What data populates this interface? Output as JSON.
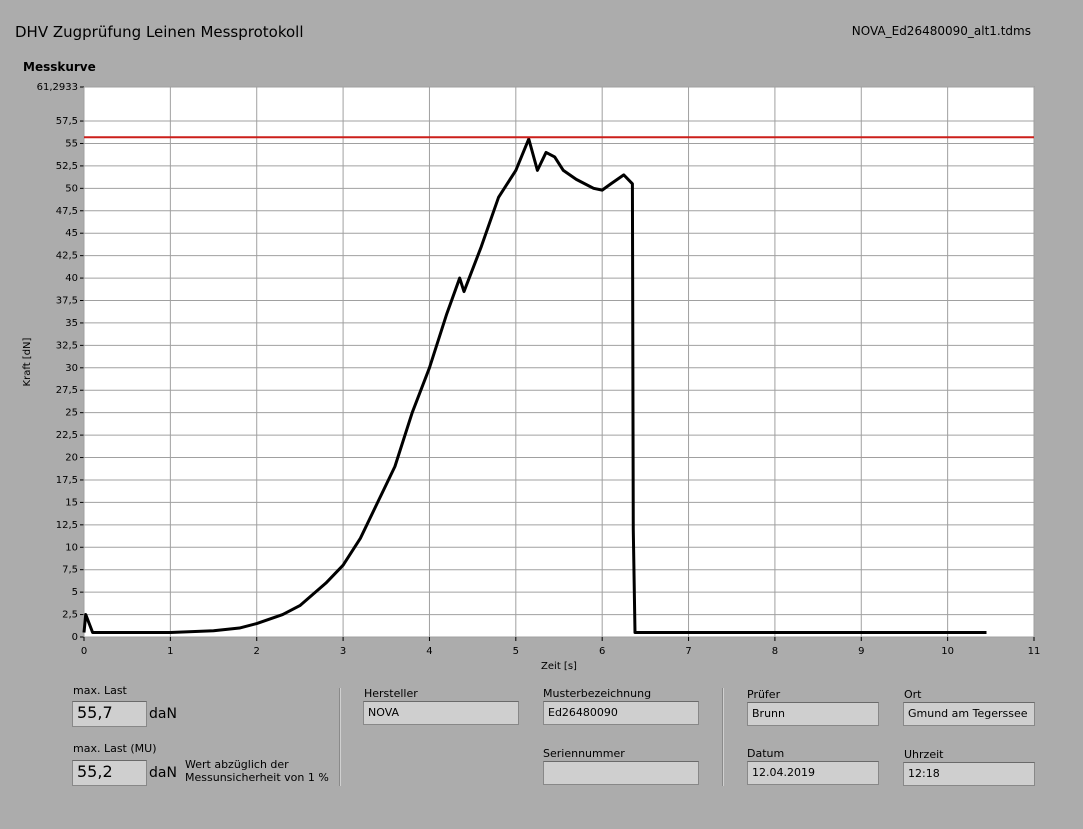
{
  "header": {
    "title": "DHV Zugprüfung Leinen Messprotokoll",
    "file": "NOVA_Ed26480090_alt1.tdms"
  },
  "chart_data": {
    "type": "line",
    "title": "Messkurve",
    "x_label": "Zeit [s]",
    "y_label": "Kraft [dN]",
    "x": [
      0,
      0.02,
      0.1,
      0.5,
      1.0,
      1.5,
      1.8,
      2.0,
      2.3,
      2.5,
      2.8,
      3.0,
      3.2,
      3.4,
      3.6,
      3.8,
      4.0,
      4.2,
      4.35,
      4.4,
      4.6,
      4.8,
      5.0,
      5.15,
      5.25,
      5.35,
      5.45,
      5.55,
      5.7,
      5.9,
      6.0,
      6.1,
      6.25,
      6.35,
      6.36,
      6.38,
      6.5,
      10.45
    ],
    "values": [
      0.5,
      2.5,
      0.5,
      0.5,
      0.5,
      0.7,
      1.0,
      1.5,
      2.5,
      3.5,
      6,
      8,
      11,
      15,
      19,
      25,
      30,
      36,
      40,
      38.5,
      43.5,
      49,
      52,
      55.5,
      52,
      54,
      53.5,
      52,
      51,
      50,
      49.8,
      50.5,
      51.5,
      50.5,
      12,
      0.5,
      0.5,
      0.5
    ],
    "color": "#000000",
    "limit_line": 55.7,
    "limit_color": "#cc1f1a",
    "xlim": [
      0,
      11
    ],
    "xticks": [
      0,
      1,
      2,
      3,
      4,
      5,
      6,
      7,
      8,
      9,
      10,
      11
    ],
    "ylim": [
      0,
      61.2933
    ],
    "yticks": [
      0,
      {
        "value": 2.5,
        "label": "2,5"
      },
      5,
      {
        "value": 7.5,
        "label": "7,5"
      },
      10,
      {
        "value": 12.5,
        "label": "12,5"
      },
      15,
      {
        "value": 17.5,
        "label": "17,5"
      },
      20,
      {
        "value": 22.5,
        "label": "22,5"
      },
      25,
      {
        "value": 27.5,
        "label": "27,5"
      },
      30,
      {
        "value": 32.5,
        "label": "32,5"
      },
      35,
      {
        "value": 37.5,
        "label": "37,5"
      },
      40,
      {
        "value": 42.5,
        "label": "42,5"
      },
      45,
      {
        "value": 47.5,
        "label": "47,5"
      },
      50,
      {
        "value": 52.5,
        "label": "52,5"
      },
      55,
      {
        "value": 57.5,
        "label": "57,5"
      },
      {
        "value": 61.2933,
        "label": "61,2933"
      }
    ],
    "grid": true
  },
  "results": {
    "max_label": "max. Last",
    "max_value": "55,7",
    "max_unit": "daN",
    "mu_label": "max. Last (MU)",
    "mu_value": "55,2",
    "mu_unit": "daN",
    "mu_note": "Wert abzüglich der Messunsicherheit von 1 %"
  },
  "fields": {
    "hersteller_label": "Hersteller",
    "hersteller": "NOVA",
    "muster_label": "Musterbezeichnung",
    "muster": "Ed26480090",
    "serien_label": "Seriennummer",
    "pruefer_label": "Prüfer",
    "pruefer": "Brunn",
    "ort_label": "Ort",
    "ort": "Gmund am Tegerssee",
    "datum_label": "Datum",
    "datum": "12.04.2019",
    "uhrzeit_label": "Uhrzeit",
    "uhrzeit": "12:18"
  }
}
